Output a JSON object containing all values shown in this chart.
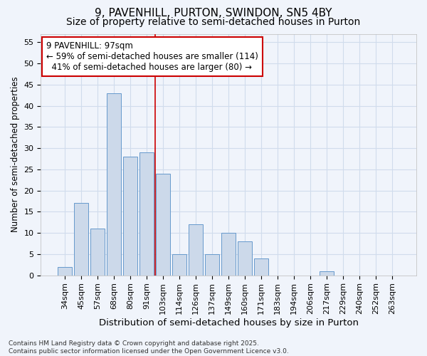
{
  "title_line1": "9, PAVENHILL, PURTON, SWINDON, SN5 4BY",
  "title_line2": "Size of property relative to semi-detached houses in Purton",
  "xlabel": "Distribution of semi-detached houses by size in Purton",
  "ylabel": "Number of semi-detached properties",
  "categories": [
    "34sqm",
    "45sqm",
    "57sqm",
    "68sqm",
    "80sqm",
    "91sqm",
    "103sqm",
    "114sqm",
    "126sqm",
    "137sqm",
    "149sqm",
    "160sqm",
    "171sqm",
    "183sqm",
    "194sqm",
    "206sqm",
    "217sqm",
    "229sqm",
    "240sqm",
    "252sqm",
    "263sqm"
  ],
  "values": [
    2,
    17,
    11,
    43,
    28,
    29,
    24,
    5,
    12,
    5,
    10,
    8,
    4,
    0,
    0,
    0,
    1,
    0,
    0,
    0,
    0
  ],
  "bar_color": "#ccd9ea",
  "bar_edge_color": "#6699cc",
  "vline_x_index": 5.5,
  "vline_color": "#cc0000",
  "annotation_line1": "9 PAVENHILL: 97sqm",
  "annotation_line2": "← 59% of semi-detached houses are smaller (114)",
  "annotation_line3": "  41% of semi-detached houses are larger (80) →",
  "annotation_box_color": "white",
  "annotation_box_edge_color": "#cc0000",
  "ylim": [
    0,
    57
  ],
  "yticks": [
    0,
    5,
    10,
    15,
    20,
    25,
    30,
    35,
    40,
    45,
    50,
    55
  ],
  "background_color": "#f0f4fb",
  "plot_bg_color": "#f0f4fb",
  "grid_color": "#d0dcec",
  "footer": "Contains HM Land Registry data © Crown copyright and database right 2025.\nContains public sector information licensed under the Open Government Licence v3.0.",
  "title_fontsize": 11,
  "subtitle_fontsize": 10,
  "xlabel_fontsize": 9.5,
  "ylabel_fontsize": 8.5,
  "tick_fontsize": 8,
  "annotation_fontsize": 8.5,
  "footer_fontsize": 6.5
}
